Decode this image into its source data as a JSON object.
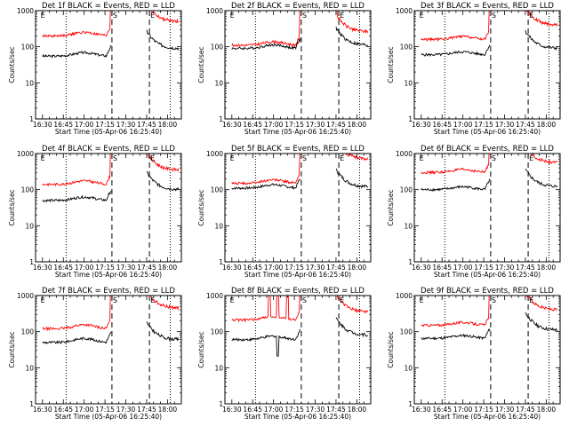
{
  "chart_data": {
    "type": "line",
    "layout": "3x3 grid",
    "x_tick_labels": [
      "16:30",
      "16:45",
      "17:00",
      "17:15",
      "17:30",
      "17:45",
      "18:00"
    ],
    "x_ticks_minutes": [
      0,
      15,
      30,
      45,
      60,
      75,
      90
    ],
    "xlim_minutes": [
      -5,
      100
    ],
    "xlabel": "Start Time (05-Apr-06 16:25:40)",
    "ylabel": "Counts/sec",
    "y_scale": "log",
    "ylim": [
      1,
      1000
    ],
    "y_tick_labels": [
      "1",
      "10",
      "100",
      "1000"
    ],
    "y_tick_values": [
      1,
      10,
      100,
      1000
    ],
    "dotted_line_minutes": [
      17,
      92
    ],
    "dashed_line_minutes": [
      50,
      77
    ],
    "markers": [
      {
        "label": "E",
        "x_minutes": -2
      },
      {
        "label": "S",
        "x_minutes": 50
      },
      {
        "label": "E",
        "x_minutes": 77
      }
    ],
    "series_colors": {
      "events": "#000000",
      "lld": "#ff0000"
    },
    "panels": [
      {
        "title": "Det 1f BLACK = Events, RED = LLD",
        "events_base": 55,
        "lld_base": 200,
        "events_post": 90,
        "lld_post": 500,
        "hump": 1.25,
        "spikes": []
      },
      {
        "title": "Det 2f BLACK = Events, RED = LLD",
        "events_base": 90,
        "lld_base": 110,
        "events_post": 110,
        "lld_post": 260,
        "hump": 1.25,
        "spikes": []
      },
      {
        "title": "Det 3f BLACK = Events, RED = LLD",
        "events_base": 60,
        "lld_base": 160,
        "events_post": 90,
        "lld_post": 400,
        "hump": 1.2,
        "spikes": []
      },
      {
        "title": "Det 4f BLACK = Events, RED = LLD",
        "events_base": 50,
        "lld_base": 140,
        "events_post": 100,
        "lld_post": 350,
        "hump": 1.25,
        "spikes": []
      },
      {
        "title": "Det 5f BLACK = Events, RED = LLD",
        "events_base": 110,
        "lld_base": 150,
        "events_post": 120,
        "lld_post": 700,
        "hump": 1.25,
        "spikes": []
      },
      {
        "title": "Det 6f BLACK = Events, RED = LLD",
        "events_base": 100,
        "lld_base": 300,
        "events_post": 120,
        "lld_post": 550,
        "hump": 1.2,
        "spikes": []
      },
      {
        "title": "Det 7f BLACK = Events, RED = LLD",
        "events_base": 50,
        "lld_base": 120,
        "events_post": 60,
        "lld_post": 450,
        "hump": 1.3,
        "spikes": []
      },
      {
        "title": "Det 8f BLACK = Events, RED = LLD",
        "events_base": 60,
        "lld_base": 210,
        "events_post": 80,
        "lld_post": 350,
        "hump": 1.25,
        "spikes": [
          27,
          33,
          40
        ]
      },
      {
        "title": "Det 9f BLACK = Events, RED = LLD",
        "events_base": 65,
        "lld_base": 150,
        "events_post": 110,
        "lld_post": 400,
        "hump": 1.2,
        "spikes": []
      }
    ]
  }
}
